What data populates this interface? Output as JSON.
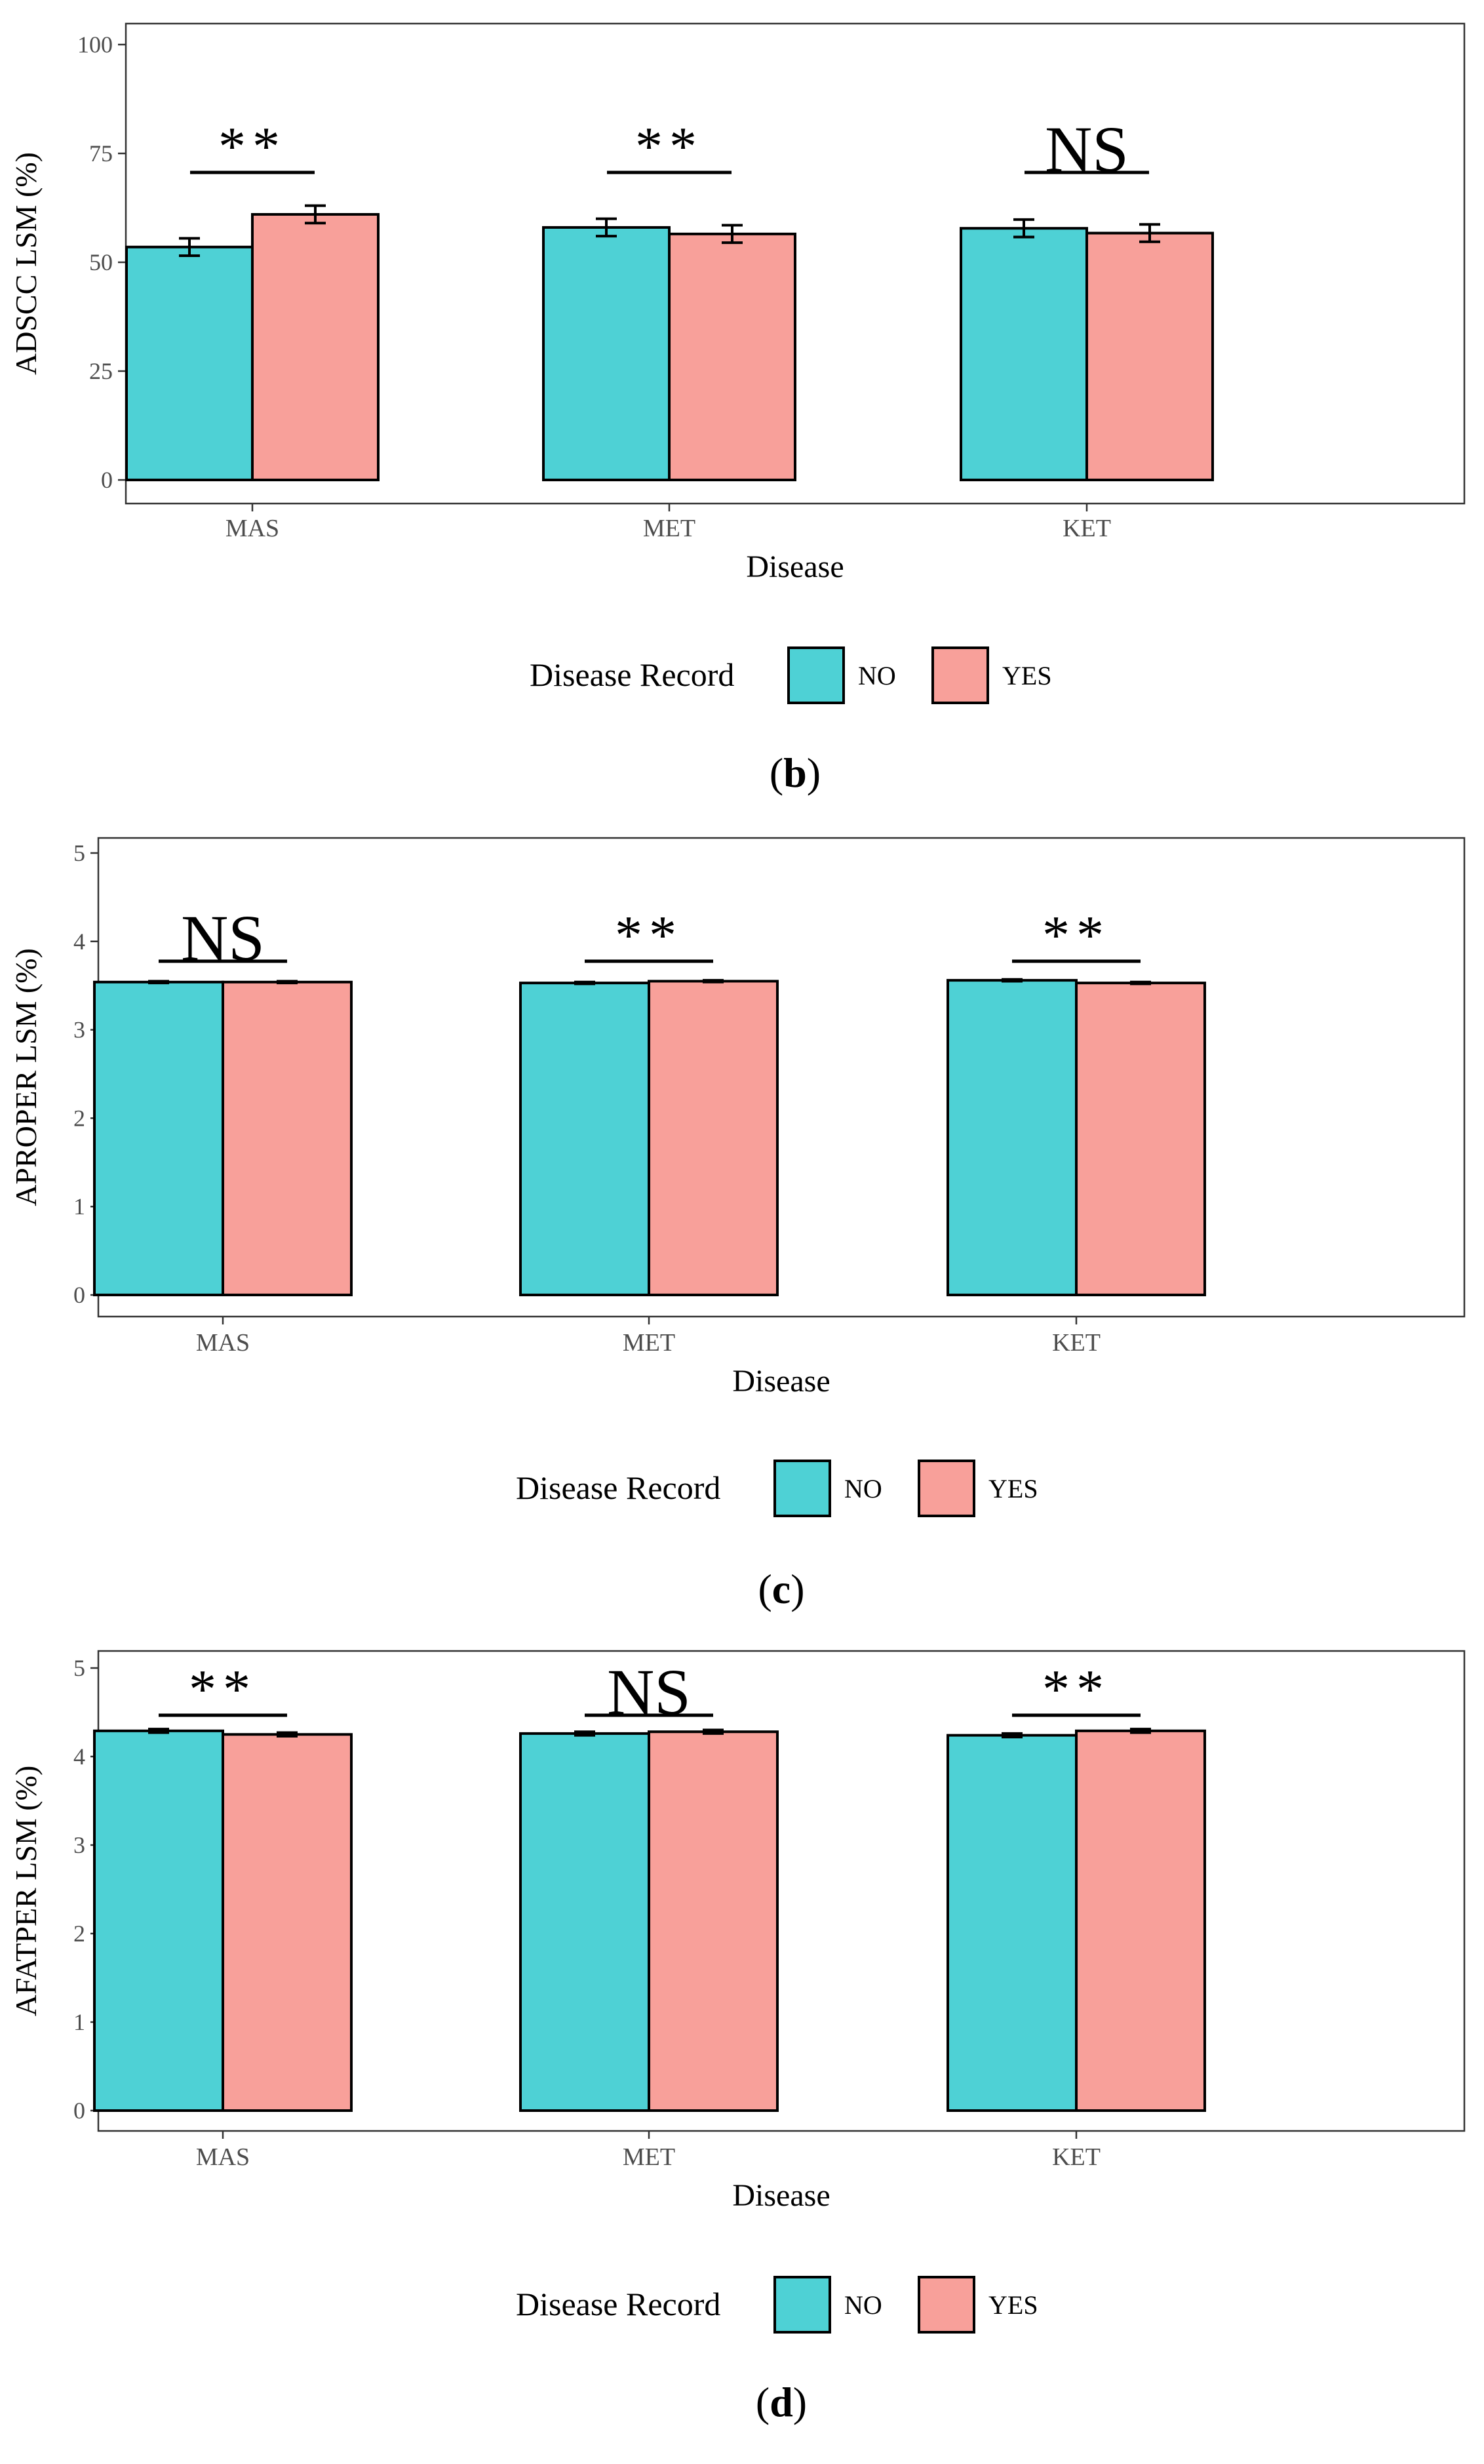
{
  "colors": {
    "no": "#4ED1D5",
    "yes": "#F8A09A",
    "axis": "#333333",
    "stroke": "#000000"
  },
  "panels": [
    {
      "panel_label": "b",
      "legend": {
        "title": "Disease Record",
        "items": [
          "NO",
          "YES"
        ]
      },
      "significance": [
        "**",
        "**",
        "NS"
      ],
      "chart_data": {
        "type": "bar",
        "categories": [
          "MAS",
          "MET",
          "KET"
        ],
        "xlabel": "Disease",
        "ylabel": "ADSCC LSM (%)",
        "ylim": [
          0,
          100
        ],
        "yticks": [
          0,
          25,
          50,
          75,
          100
        ],
        "grid": false,
        "legend_position": "bottom",
        "series": [
          {
            "name": "NO",
            "values": [
              53.5,
              58.0,
              57.8
            ],
            "errors": [
              2.0,
              2.0,
              2.0
            ]
          },
          {
            "name": "YES",
            "values": [
              61.0,
              56.5,
              56.7
            ],
            "errors": [
              2.0,
              2.0,
              2.0
            ]
          }
        ]
      }
    },
    {
      "panel_label": "c",
      "legend": {
        "title": "Disease Record",
        "items": [
          "NO",
          "YES"
        ]
      },
      "significance": [
        "NS",
        "**",
        "**"
      ],
      "chart_data": {
        "type": "bar",
        "categories": [
          "MAS",
          "MET",
          "KET"
        ],
        "xlabel": "Disease",
        "ylabel": "APROPER  LSM (%)",
        "ylim": [
          0,
          5
        ],
        "yticks": [
          0,
          1,
          2,
          3,
          4,
          5
        ],
        "grid": false,
        "legend_position": "bottom",
        "series": [
          {
            "name": "NO",
            "values": [
              3.54,
              3.53,
              3.56
            ],
            "errors": [
              0.01,
              0.01,
              0.01
            ]
          },
          {
            "name": "YES",
            "values": [
              3.54,
              3.55,
              3.53
            ],
            "errors": [
              0.01,
              0.01,
              0.01
            ]
          }
        ]
      }
    },
    {
      "panel_label": "d",
      "legend": {
        "title": "Disease Record",
        "items": [
          "NO",
          "YES"
        ]
      },
      "significance": [
        "**",
        "NS",
        "**"
      ],
      "chart_data": {
        "type": "bar",
        "categories": [
          "MAS",
          "MET",
          "KET"
        ],
        "xlabel": "Disease",
        "ylabel": "AFATPER  LSM (%)",
        "ylim": [
          0,
          5
        ],
        "yticks": [
          0,
          1,
          2,
          3,
          4,
          5
        ],
        "grid": false,
        "legend_position": "bottom",
        "series": [
          {
            "name": "NO",
            "values": [
              4.29,
              4.26,
              4.24
            ],
            "errors": [
              0.02,
              0.02,
              0.02
            ]
          },
          {
            "name": "YES",
            "values": [
              4.25,
              4.28,
              4.29
            ],
            "errors": [
              0.02,
              0.02,
              0.02
            ]
          }
        ]
      }
    }
  ]
}
